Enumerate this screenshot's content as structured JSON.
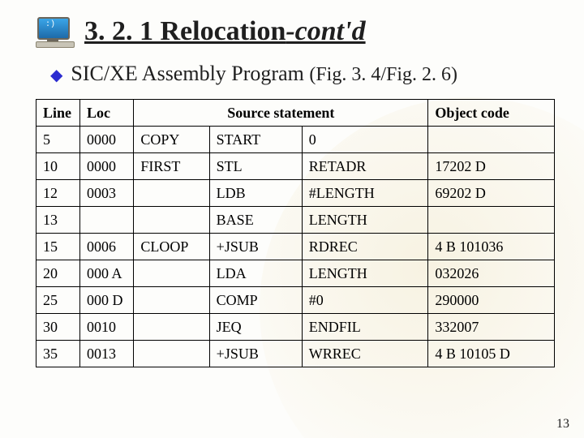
{
  "title": {
    "prefix": "3. 2. 1 Relocation",
    "suffix": "-cont'd"
  },
  "subtitle": {
    "main": "SIC/XE Assembly Program ",
    "figref": "(Fig. 3. 4/Fig. 2. 6)"
  },
  "headers": {
    "line": "Line",
    "loc": "Loc",
    "source": "Source statement",
    "object": "Object code"
  },
  "rows": [
    {
      "line": "5",
      "loc": "0000",
      "label": "COPY",
      "opcode": "START",
      "operand": "0",
      "obj": ""
    },
    {
      "line": "10",
      "loc": "0000",
      "label": "FIRST",
      "opcode": "STL",
      "operand": "RETADR",
      "obj": "17202 D"
    },
    {
      "line": "12",
      "loc": "0003",
      "label": "",
      "opcode": "LDB",
      "operand": "#LENGTH",
      "obj": "69202 D"
    },
    {
      "line": "13",
      "loc": "",
      "label": "",
      "opcode": "BASE",
      "operand": "LENGTH",
      "obj": ""
    },
    {
      "line": "15",
      "loc": "0006",
      "label": "CLOOP",
      "opcode": "+JSUB",
      "operand": "RDREC",
      "obj": "4 B 101036"
    },
    {
      "line": "20",
      "loc": "000 A",
      "label": "",
      "opcode": "LDA",
      "operand": "LENGTH",
      "obj": "032026"
    },
    {
      "line": "25",
      "loc": "000 D",
      "label": "",
      "opcode": "COMP",
      "operand": "#0",
      "obj": "290000"
    },
    {
      "line": "30",
      "loc": "0010",
      "label": "",
      "opcode": "JEQ",
      "operand": "ENDFIL",
      "obj": "332007"
    },
    {
      "line": "35",
      "loc": "0013",
      "label": "",
      "opcode": "+JSUB",
      "operand": "WRREC",
      "obj": "4 B 10105 D"
    }
  ],
  "page_number": "13",
  "colors": {
    "bullet": "#2b2bd0",
    "border": "#000000",
    "text": "#1f1f1f"
  }
}
